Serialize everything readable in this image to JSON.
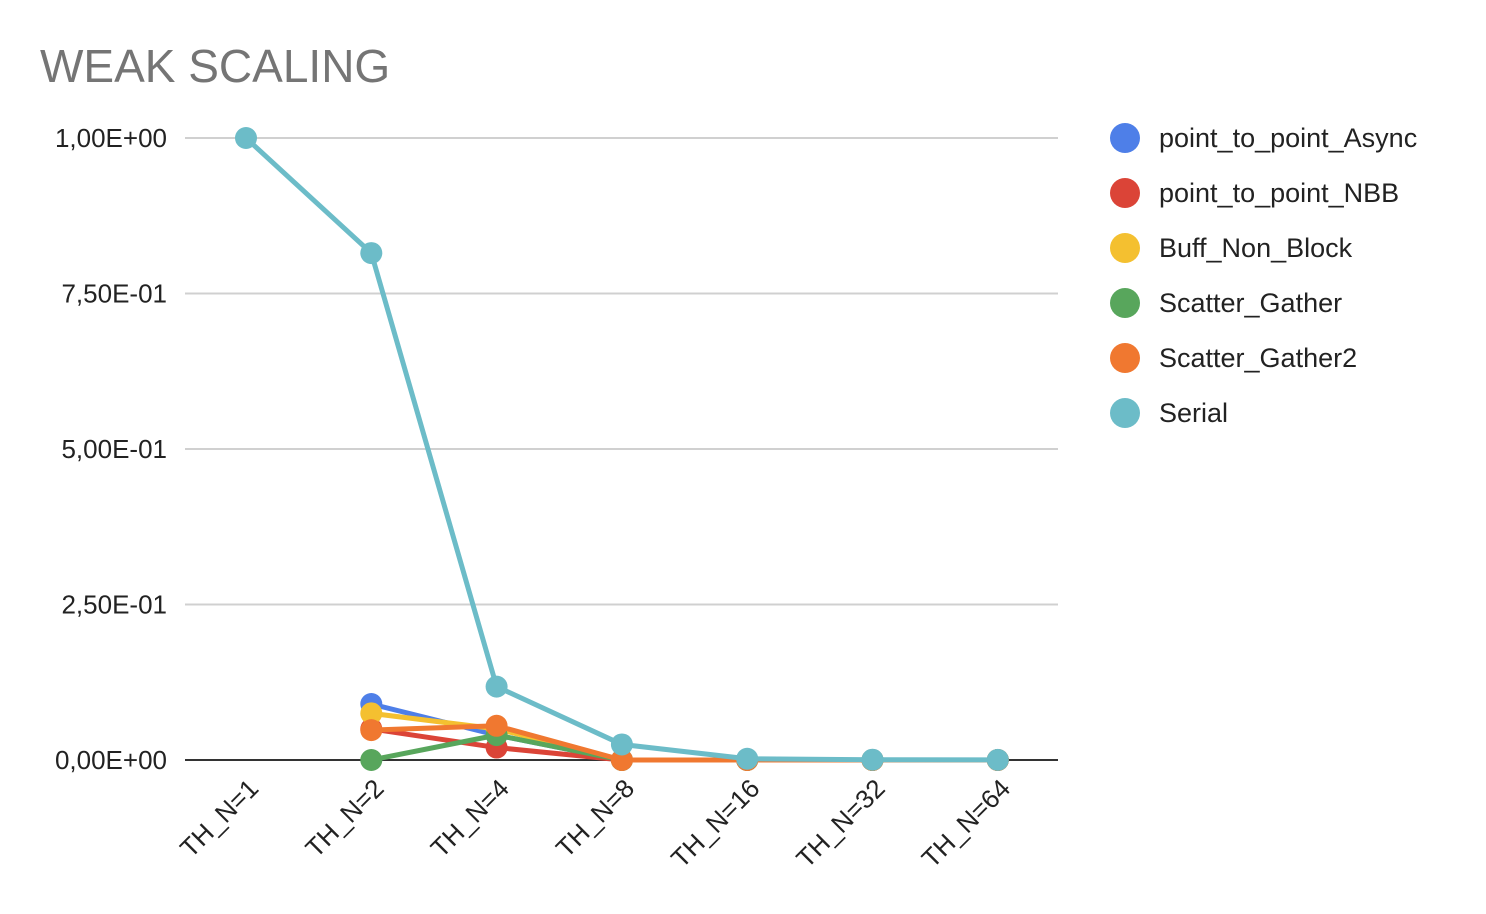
{
  "chart_data": {
    "type": "line",
    "title": "WEAK SCALING",
    "xlabel": "",
    "ylabel": "",
    "categories": [
      "TH_N=1",
      "TH_N=2",
      "TH_N=4",
      "TH_N=8",
      "TH_N=16",
      "TH_N=32",
      "TH_N=64"
    ],
    "ylim": [
      0,
      1
    ],
    "yticks": [
      0,
      0.25,
      0.5,
      0.75,
      1
    ],
    "ytick_labels": [
      "0,00E+00",
      "2,50E-01",
      "5,00E-01",
      "7,50E-01",
      "1,00E+00"
    ],
    "grid": true,
    "legend_position": "right",
    "series": [
      {
        "name": "point_to_point_Async",
        "color": "#4e7fe8",
        "values": [
          null,
          0.09,
          0.04,
          0,
          0,
          0,
          0
        ]
      },
      {
        "name": "point_to_point_NBB",
        "color": "#db4437",
        "values": [
          null,
          0.05,
          0.02,
          0,
          0,
          0,
          0
        ]
      },
      {
        "name": "Buff_Non_Block",
        "color": "#f4c030",
        "values": [
          null,
          0.075,
          0.05,
          0,
          0,
          0,
          0
        ]
      },
      {
        "name": "Scatter_Gather",
        "color": "#58a65c",
        "values": [
          null,
          0,
          0.04,
          0,
          0,
          0,
          0
        ]
      },
      {
        "name": "Scatter_Gather2",
        "color": "#f07830",
        "values": [
          null,
          0.048,
          0.055,
          0,
          0,
          0,
          0
        ]
      },
      {
        "name": "Serial",
        "color": "#6cbcc8",
        "values": [
          1.0,
          0.815,
          0.118,
          0.025,
          0.002,
          0.0005,
          0.0002
        ]
      }
    ]
  }
}
